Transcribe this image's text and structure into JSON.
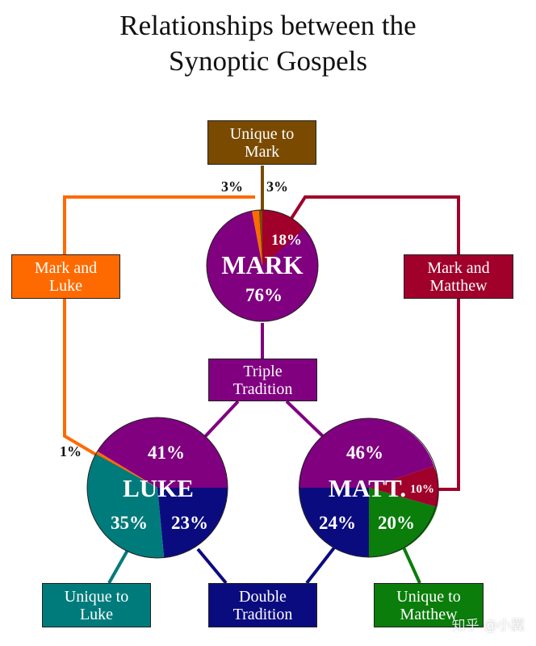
{
  "title": {
    "line1": "Relationships between the",
    "line2": "Synoptic Gospels"
  },
  "colors": {
    "purple": "#800080",
    "crimson": "#a0002a",
    "orange": "#ff6a00",
    "brown": "#7a4a00",
    "teal": "#007b7b",
    "navy": "#0b0b80",
    "green": "#0a7d0a"
  },
  "boxes": {
    "unique_mark": {
      "line1": "Unique to",
      "line2": "Mark"
    },
    "mark_luke": {
      "line1": "Mark and",
      "line2": "Luke"
    },
    "mark_matthew": {
      "line1": "Mark and",
      "line2": "Matthew"
    },
    "triple": {
      "line1": "Triple",
      "line2": "Tradition"
    },
    "unique_luke": {
      "line1": "Unique to",
      "line2": "Luke"
    },
    "double": {
      "line1": "Double",
      "line2": "Tradition"
    },
    "unique_matthew": {
      "line1": "Unique to",
      "line2": "Matthew"
    }
  },
  "pies": {
    "mark": {
      "name": "MARK",
      "slices": [
        {
          "label": "76%",
          "value": 76,
          "color": "#800080"
        },
        {
          "label": "18%",
          "value": 18,
          "color": "#a0002a"
        },
        {
          "label": "3%",
          "value": 3,
          "color": "#ff6a00"
        },
        {
          "label": "3%",
          "value": 3,
          "color": "#7a4a00"
        }
      ]
    },
    "luke": {
      "name": "LUKE",
      "slices": [
        {
          "label": "41%",
          "value": 41,
          "color": "#800080"
        },
        {
          "label": "23%",
          "value": 23,
          "color": "#0b0b80"
        },
        {
          "label": "35%",
          "value": 35,
          "color": "#007b7b"
        },
        {
          "label": "1%",
          "value": 1,
          "color": "#ff6a00"
        }
      ]
    },
    "matt": {
      "name": "MATT.",
      "slices": [
        {
          "label": "46%",
          "value": 46,
          "color": "#800080"
        },
        {
          "label": "10%",
          "value": 10,
          "color": "#a0002a"
        },
        {
          "label": "20%",
          "value": 20,
          "color": "#0a7d0a"
        },
        {
          "label": "24%",
          "value": 24,
          "color": "#0b0b80"
        }
      ]
    }
  },
  "watermark": "知乎 @小翼"
}
